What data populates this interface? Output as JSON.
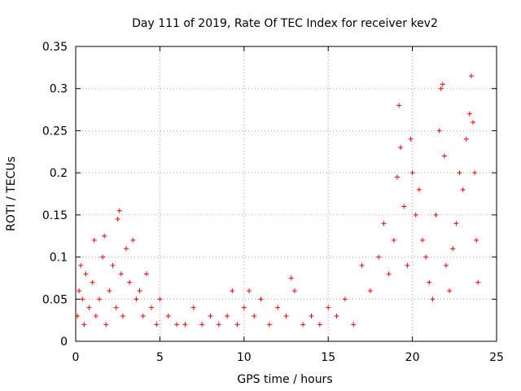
{
  "chart_data": {
    "type": "scatter",
    "title": "Day 111 of 2019, Rate Of TEC Index for receiver kev2",
    "xlabel": "GPS time / hours",
    "ylabel": "ROTI / TECUs",
    "xlim": [
      0,
      25
    ],
    "ylim": [
      0,
      0.35
    ],
    "x_ticks": [
      0,
      5,
      10,
      15,
      20,
      25
    ],
    "x_tick_labels": [
      "0",
      "5",
      "10",
      "15",
      "20",
      "25"
    ],
    "y_ticks": [
      0,
      0.05,
      0.1,
      0.15,
      0.2,
      0.25,
      0.3,
      0.35
    ],
    "y_tick_labels": [
      "0",
      "0.05",
      "0.1",
      "0.15",
      "0.2",
      "0.25",
      "0.3",
      "0.35"
    ],
    "grid": true,
    "marker": "plus",
    "marker_color": "#ff0000",
    "series": [
      {
        "name": "ROTI",
        "points": [
          [
            0.1,
            0.03
          ],
          [
            0.2,
            0.06
          ],
          [
            0.3,
            0.09
          ],
          [
            0.4,
            0.05
          ],
          [
            0.5,
            0.02
          ],
          [
            0.6,
            0.08
          ],
          [
            0.8,
            0.04
          ],
          [
            1.0,
            0.07
          ],
          [
            1.1,
            0.12
          ],
          [
            1.2,
            0.03
          ],
          [
            1.4,
            0.05
          ],
          [
            1.6,
            0.1
          ],
          [
            1.7,
            0.125
          ],
          [
            1.8,
            0.02
          ],
          [
            2.0,
            0.06
          ],
          [
            2.2,
            0.09
          ],
          [
            2.4,
            0.04
          ],
          [
            2.5,
            0.145
          ],
          [
            2.6,
            0.155
          ],
          [
            2.7,
            0.08
          ],
          [
            2.8,
            0.03
          ],
          [
            3.0,
            0.11
          ],
          [
            3.2,
            0.07
          ],
          [
            3.4,
            0.12
          ],
          [
            3.6,
            0.05
          ],
          [
            3.8,
            0.06
          ],
          [
            4.0,
            0.03
          ],
          [
            4.2,
            0.08
          ],
          [
            4.5,
            0.04
          ],
          [
            4.8,
            0.02
          ],
          [
            5.0,
            0.05
          ],
          [
            5.5,
            0.03
          ],
          [
            6.0,
            0.02
          ],
          [
            6.5,
            0.02
          ],
          [
            7.0,
            0.04
          ],
          [
            7.5,
            0.02
          ],
          [
            8.0,
            0.03
          ],
          [
            8.5,
            0.02
          ],
          [
            9.0,
            0.03
          ],
          [
            9.3,
            0.06
          ],
          [
            9.6,
            0.02
          ],
          [
            10.0,
            0.04
          ],
          [
            10.3,
            0.06
          ],
          [
            10.6,
            0.03
          ],
          [
            11.0,
            0.05
          ],
          [
            11.5,
            0.02
          ],
          [
            12.0,
            0.04
          ],
          [
            12.5,
            0.03
          ],
          [
            12.8,
            0.075
          ],
          [
            13.0,
            0.06
          ],
          [
            13.5,
            0.02
          ],
          [
            14.0,
            0.03
          ],
          [
            14.5,
            0.02
          ],
          [
            15.0,
            0.04
          ],
          [
            15.5,
            0.03
          ],
          [
            16.0,
            0.05
          ],
          [
            16.5,
            0.02
          ],
          [
            17.0,
            0.09
          ],
          [
            17.5,
            0.06
          ],
          [
            18.0,
            0.1
          ],
          [
            18.3,
            0.14
          ],
          [
            18.6,
            0.08
          ],
          [
            18.9,
            0.12
          ],
          [
            19.1,
            0.195
          ],
          [
            19.2,
            0.28
          ],
          [
            19.3,
            0.23
          ],
          [
            19.5,
            0.16
          ],
          [
            19.7,
            0.09
          ],
          [
            19.9,
            0.24
          ],
          [
            20.0,
            0.2
          ],
          [
            20.2,
            0.15
          ],
          [
            20.4,
            0.18
          ],
          [
            20.6,
            0.12
          ],
          [
            20.8,
            0.1
          ],
          [
            21.0,
            0.07
          ],
          [
            21.2,
            0.05
          ],
          [
            21.4,
            0.15
          ],
          [
            21.6,
            0.25
          ],
          [
            21.7,
            0.3
          ],
          [
            21.8,
            0.305
          ],
          [
            21.9,
            0.22
          ],
          [
            22.0,
            0.09
          ],
          [
            22.2,
            0.06
          ],
          [
            22.4,
            0.11
          ],
          [
            22.6,
            0.14
          ],
          [
            22.8,
            0.2
          ],
          [
            23.0,
            0.18
          ],
          [
            23.2,
            0.24
          ],
          [
            23.4,
            0.27
          ],
          [
            23.5,
            0.315
          ],
          [
            23.6,
            0.26
          ],
          [
            23.7,
            0.2
          ],
          [
            23.8,
            0.12
          ],
          [
            23.9,
            0.07
          ]
        ]
      }
    ]
  }
}
